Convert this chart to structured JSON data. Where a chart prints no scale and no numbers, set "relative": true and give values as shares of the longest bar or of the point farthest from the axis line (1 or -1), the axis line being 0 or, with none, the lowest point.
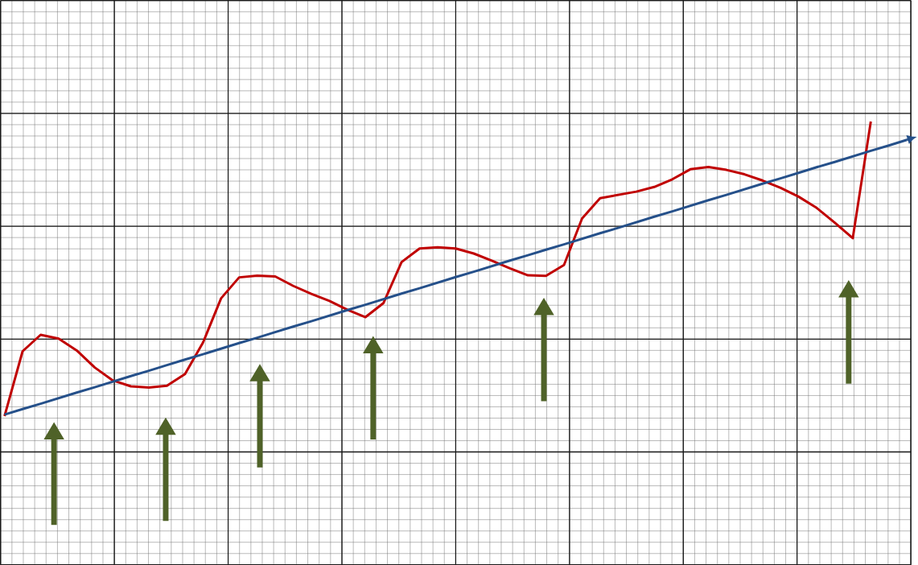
{
  "chart_data": {
    "type": "line",
    "relative": true,
    "grid": true,
    "marker": "none",
    "line_style": "solid",
    "categories": [
      null,
      null,
      null,
      null,
      null,
      null,
      null,
      null,
      null,
      null,
      null,
      null,
      null,
      null,
      null,
      null,
      null,
      null,
      null,
      null,
      null,
      null,
      null,
      null,
      null,
      null,
      null,
      null,
      null,
      null,
      null,
      null,
      null,
      null,
      null,
      null,
      null,
      null,
      null,
      null,
      null,
      null,
      null,
      null,
      null,
      null,
      null,
      null,
      null,
      null,
      null
    ],
    "series": [
      {
        "color": "#c00000",
        "values": [
          0,
          0.22,
          0.276,
          0.263,
          0.223,
          0.165,
          0.121,
          0.101,
          0.097,
          0.103,
          0.143,
          0.25,
          0.4,
          0.471,
          0.477,
          0.474,
          0.442,
          0.415,
          0.391,
          0.361,
          0.336,
          0.384,
          0.523,
          0.569,
          0.573,
          0.569,
          0.552,
          0.528,
          0.502,
          0.478,
          0.476,
          0.513,
          0.671,
          0.74,
          0.751,
          0.762,
          0.778,
          0.804,
          0.838,
          0.846,
          0.836,
          0.821,
          0.8,
          0.775,
          0.745,
          0.707,
          0.657,
          0.604,
          1,
          null,
          null
        ]
      },
      {
        "color": "#25508a",
        "values": [
          0.005,
          0.024,
          0.042,
          0.061,
          0.08,
          0.098,
          0.117,
          0.136,
          0.154,
          0.173,
          0.192,
          0.21,
          0.229,
          0.248,
          0.266,
          0.285,
          0.304,
          0.322,
          0.341,
          0.36,
          0.378,
          0.397,
          0.416,
          0.434,
          0.453,
          0.472,
          0.49,
          0.509,
          0.528,
          0.546,
          0.565,
          0.583,
          0.602,
          0.621,
          0.639,
          0.658,
          0.677,
          0.695,
          0.714,
          0.733,
          0.751,
          0.77,
          0.789,
          0.807,
          0.826,
          0.845,
          0.863,
          0.882,
          0.901,
          0.919,
          0.938
        ]
      }
    ]
  }
}
